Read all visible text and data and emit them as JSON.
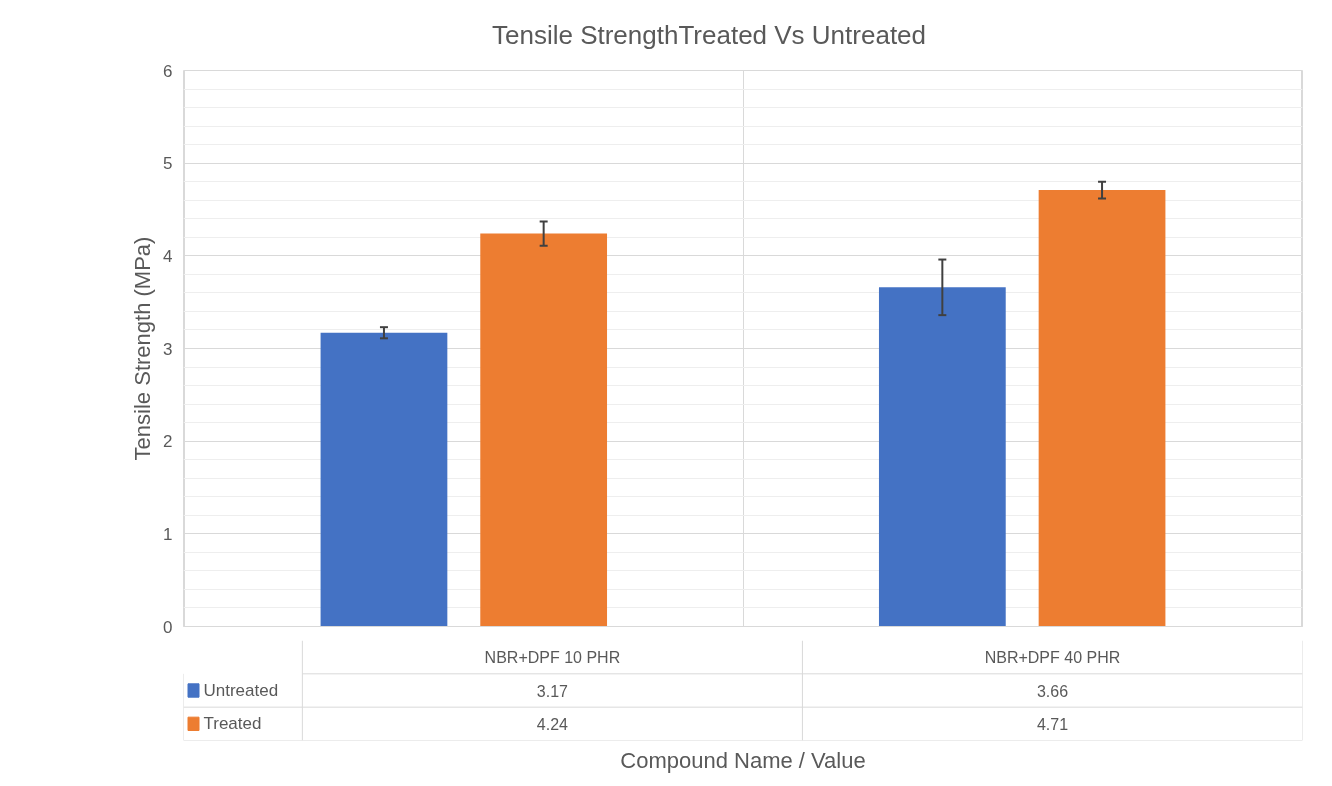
{
  "chart_data": {
    "type": "bar",
    "title": "Tensile StrengthTreated Vs Untreated",
    "xlabel": "Compound Name / Value",
    "ylabel": "Tensile Strength (MPa)",
    "categories": [
      "NBR+DPF 10 PHR",
      "NBR+DPF 40 PHR"
    ],
    "series": [
      {
        "name": "Untreated",
        "color": "#4472c4",
        "values": [
          3.17,
          3.66
        ],
        "errors": [
          0.06,
          0.3
        ]
      },
      {
        "name": "Treated",
        "color": "#ed7d31",
        "values": [
          4.24,
          4.71
        ],
        "errors": [
          0.13,
          0.09
        ]
      }
    ],
    "ylim": [
      0,
      6
    ],
    "yticks": [
      0,
      1,
      2,
      3,
      4,
      5,
      6
    ],
    "grid": "y",
    "legend": "bottom",
    "data_labels": true
  }
}
